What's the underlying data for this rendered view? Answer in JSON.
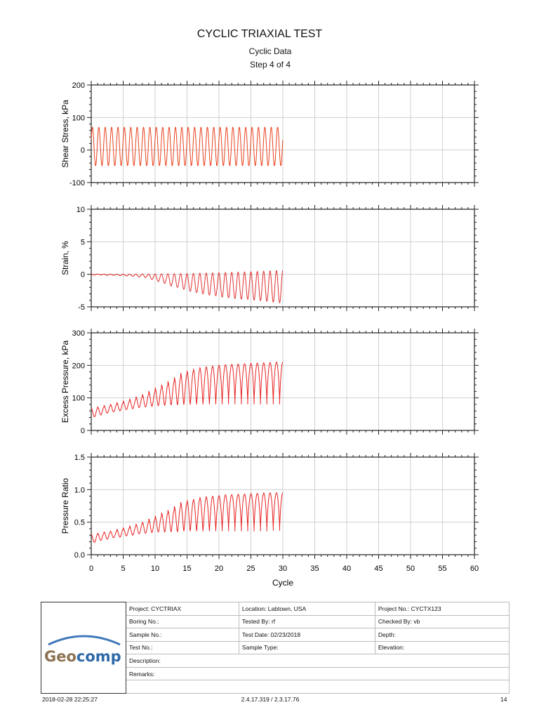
{
  "header": {
    "title": "CYCLIC TRIAXIAL TEST",
    "subtitle": "Cyclic Data",
    "step": "Step 4 of 4"
  },
  "chart_data": [
    {
      "type": "line",
      "ylabel": "Shear Stress, kPa",
      "ylim": [
        -100,
        200
      ],
      "yticks": [
        "-100",
        "0",
        "100",
        "200"
      ],
      "ytick_values": [
        -100,
        0,
        100,
        200
      ],
      "xlim": [
        0,
        60
      ],
      "grid": true,
      "color": "#e8401c",
      "cycles": 30,
      "cycle_max": [
        70,
        70,
        70,
        70,
        70,
        70,
        70,
        70,
        70,
        70,
        70,
        70,
        70,
        70,
        70,
        70,
        70,
        70,
        70,
        70,
        70,
        70,
        70,
        70,
        70,
        70,
        70,
        70,
        70,
        70
      ],
      "cycle_min": [
        -48,
        -48,
        -48,
        -48,
        -48,
        -48,
        -48,
        -48,
        -48,
        -48,
        -48,
        -48,
        -48,
        -48,
        -48,
        -48,
        -48,
        -48,
        -48,
        -48,
        -48,
        -48,
        -48,
        -48,
        -48,
        -48,
        -48,
        -48,
        -48,
        -48
      ]
    },
    {
      "type": "line",
      "ylabel": "Strain, %",
      "ylim": [
        -5,
        10
      ],
      "yticks": [
        "-5",
        "0",
        "5",
        "10"
      ],
      "ytick_values": [
        -5,
        0,
        5,
        10
      ],
      "xlim": [
        0,
        60
      ],
      "grid": true,
      "color": "#e03030",
      "cycles": 30,
      "cycle_max": [
        0.05,
        0.03,
        0.02,
        0.02,
        0.02,
        0.02,
        0.02,
        0.03,
        0.04,
        0.05,
        0.06,
        0.07,
        0.08,
        0.09,
        0.1,
        0.12,
        0.14,
        0.17,
        0.2,
        0.22,
        0.25,
        0.28,
        0.31,
        0.34,
        0.37,
        0.4,
        0.44,
        0.48,
        0.52,
        0.57
      ],
      "cycle_min": [
        -0.1,
        -0.1,
        -0.15,
        -0.15,
        -0.2,
        -0.25,
        -0.3,
        -0.4,
        -0.5,
        -0.8,
        -1.1,
        -1.4,
        -1.8,
        -2.0,
        -2.3,
        -2.6,
        -2.8,
        -3.0,
        -3.2,
        -3.3,
        -3.5,
        -3.6,
        -3.7,
        -3.8,
        -3.85,
        -3.95,
        -4.05,
        -4.15,
        -4.25,
        -4.35
      ]
    },
    {
      "type": "line",
      "ylabel": "Excess Pressure, kPa",
      "ylim": [
        0,
        300
      ],
      "yticks": [
        "0",
        "100",
        "200",
        "300"
      ],
      "ytick_values": [
        0,
        100,
        200,
        300
      ],
      "xlim": [
        0,
        60
      ],
      "grid": true,
      "color": "#e82020",
      "cycles": 30,
      "cycle_max": [
        68,
        72,
        76,
        80,
        85,
        90,
        96,
        103,
        110,
        120,
        130,
        140,
        150,
        162,
        175,
        182,
        188,
        193,
        196,
        198,
        200,
        202,
        203,
        204,
        205,
        206,
        207,
        208,
        209,
        210
      ],
      "cycle_min": [
        42,
        48,
        53,
        57,
        60,
        64,
        67,
        70,
        72,
        74,
        76,
        77,
        78,
        78,
        79,
        79,
        80,
        80,
        80,
        80,
        80,
        80,
        80,
        80,
        80,
        80,
        80,
        80,
        80,
        80
      ]
    },
    {
      "type": "line",
      "ylabel": "Pressure Ratio",
      "ylim": [
        0,
        1.5
      ],
      "yticks": [
        "0.0",
        "0.5",
        "1.0",
        "1.5"
      ],
      "ytick_values": [
        0,
        0.5,
        1,
        1.5
      ],
      "xlim": [
        0,
        60
      ],
      "grid": true,
      "color": "#e82020",
      "xlabel": "Cycle",
      "xticks": [
        "0",
        "5",
        "10",
        "15",
        "20",
        "25",
        "30",
        "35",
        "40",
        "45",
        "50",
        "55",
        "60"
      ],
      "cycles": 30,
      "cycle_max": [
        0.31,
        0.33,
        0.35,
        0.36,
        0.39,
        0.41,
        0.44,
        0.47,
        0.5,
        0.55,
        0.59,
        0.64,
        0.68,
        0.74,
        0.8,
        0.83,
        0.85,
        0.88,
        0.89,
        0.9,
        0.91,
        0.92,
        0.92,
        0.93,
        0.93,
        0.94,
        0.94,
        0.95,
        0.95,
        0.95
      ],
      "cycle_min": [
        0.19,
        0.22,
        0.24,
        0.26,
        0.27,
        0.29,
        0.3,
        0.32,
        0.33,
        0.34,
        0.35,
        0.35,
        0.35,
        0.35,
        0.36,
        0.36,
        0.36,
        0.36,
        0.36,
        0.36,
        0.36,
        0.36,
        0.36,
        0.36,
        0.36,
        0.36,
        0.36,
        0.36,
        0.37,
        0.37
      ]
    }
  ],
  "info": {
    "logo_text": "Geocomp",
    "logo_colors": {
      "geo": "#8c7352",
      "comp": "#2f6aa8"
    },
    "rows": [
      [
        "Project: CYCTRIAX",
        "Location: Labtown, USA",
        "Project No.: CYCTX123"
      ],
      [
        "Boring No.:",
        "Tested By: rf",
        "Checked By: vb"
      ],
      [
        "Sample No.:",
        "Test Date: 02/23/2018",
        "Depth:"
      ],
      [
        "Test No.:",
        "Sample Type:",
        "Elevation:"
      ]
    ],
    "description": "Description:",
    "remarks": "Remarks:"
  },
  "footer": {
    "timestamp": "2018-02-28 22:25:27",
    "version": "2.4.17.319 / 2.3.17.76",
    "page": "14"
  }
}
